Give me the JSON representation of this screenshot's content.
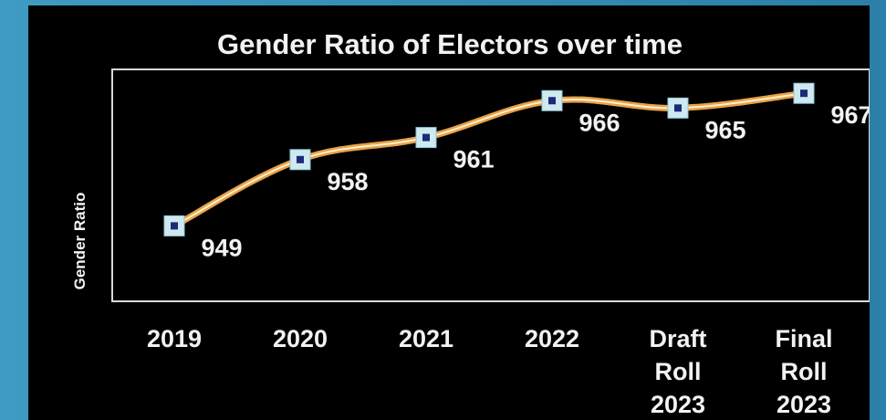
{
  "chart_data": {
    "type": "line",
    "title": "Gender Ratio of Electors over time",
    "xlabel": "",
    "ylabel": "Gender Ratio",
    "categories": [
      [
        "2019"
      ],
      [
        "2020"
      ],
      [
        "2021"
      ],
      [
        "2022"
      ],
      [
        "Draft",
        "Roll",
        "2023"
      ],
      [
        "Final",
        "Roll",
        "2023"
      ]
    ],
    "values": [
      949,
      958,
      961,
      966,
      965,
      967
    ],
    "data_labels": [
      "949",
      "958",
      "961",
      "966",
      "965",
      "967"
    ],
    "ylim": [
      940,
      970
    ],
    "grid": false,
    "legend": "none",
    "colors": {
      "background": "#000000",
      "line": "#e8a04a",
      "line_inner": "#fff1c9",
      "marker_fill": "#cfe9f1",
      "marker_core": "#1c2a7a",
      "text": "#f2f2f2",
      "outer": "#3f9bc4"
    }
  }
}
